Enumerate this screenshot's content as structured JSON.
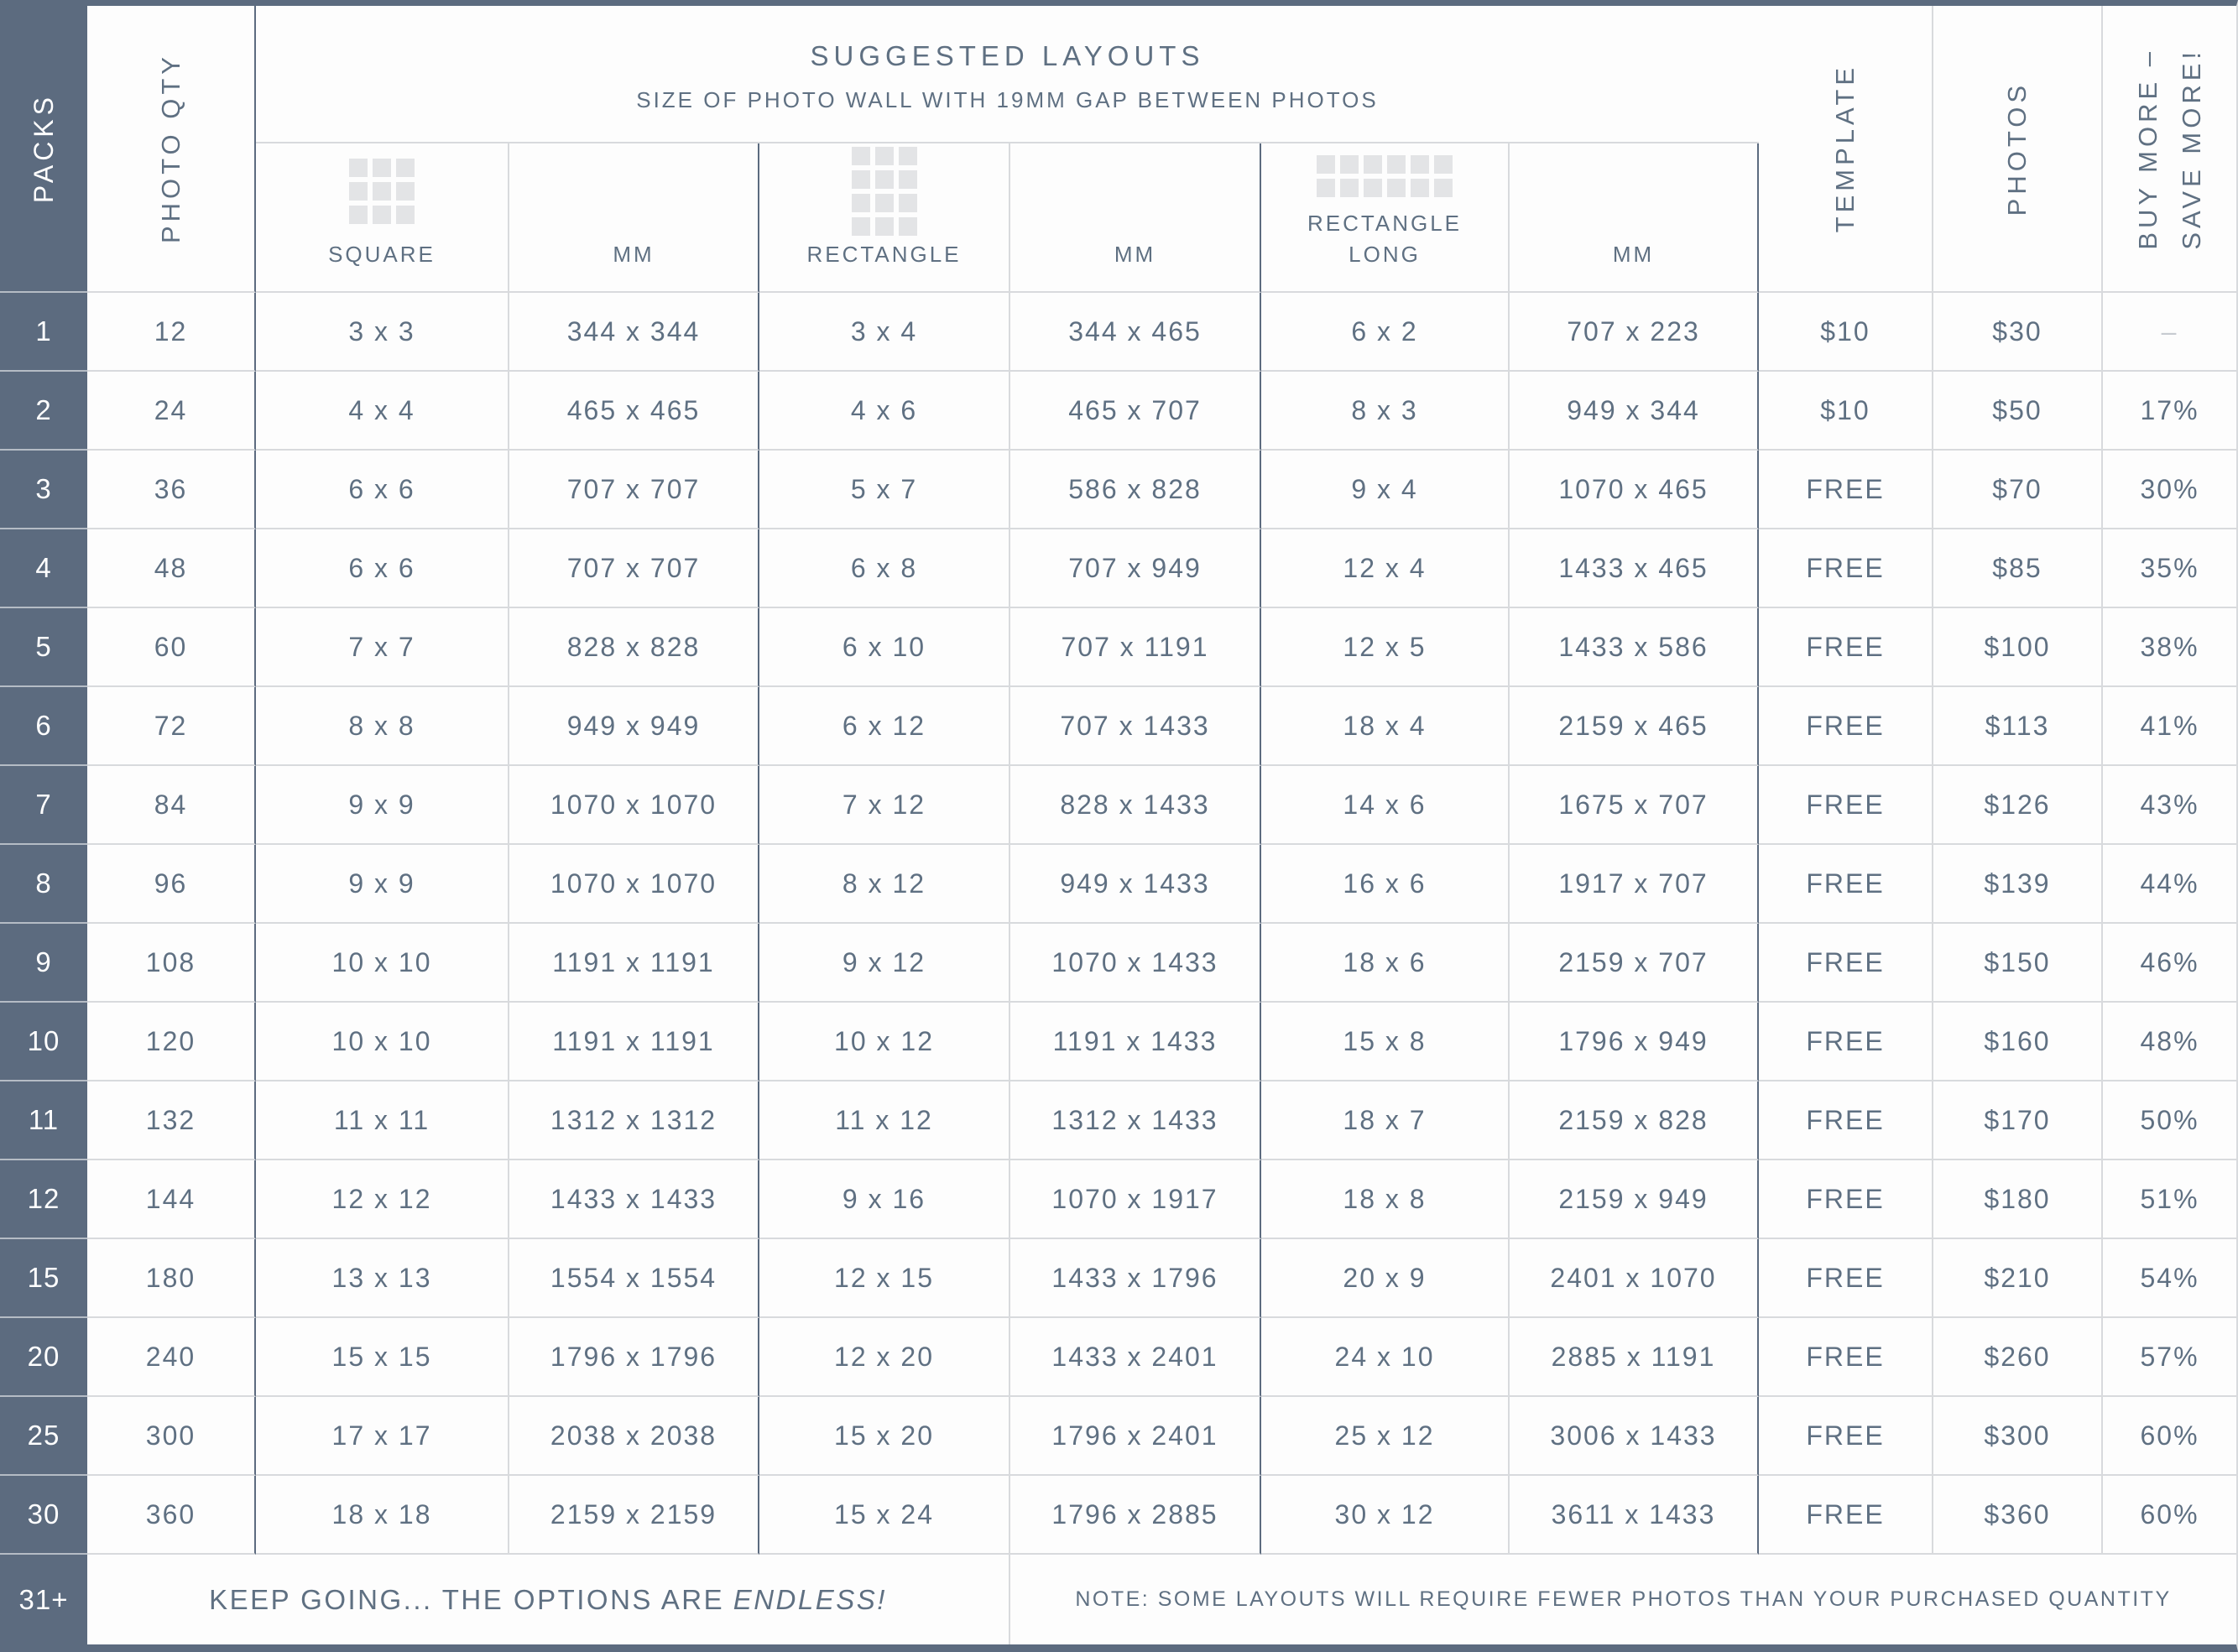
{
  "colors": {
    "slate": "#5c6b7f",
    "text": "#5f7082",
    "border_light": "#d8dadd",
    "icon_gray": "#e3e4e6"
  },
  "packs_header": "PACKS",
  "photo_qty_header": "PHOTO QTY",
  "suggested": {
    "title": "SUGGESTED LAYOUTS",
    "subtitle": "SIZE OF PHOTO WALL WITH 19MM GAP BETWEEN PHOTOS",
    "col_square": "SQUARE",
    "col_mm1": "MM",
    "col_rectangle": "RECTANGLE",
    "col_mm2": "MM",
    "col_rect_long": "RECTANGLE LONG",
    "col_mm3": "MM"
  },
  "template_header": "TEMPLATE",
  "photos_header": "PHOTOS",
  "buy_more_header": {
    "line1": "BUY MORE –",
    "line2": "SAVE MORE!"
  },
  "rows": [
    {
      "pack": "1",
      "qty": "12",
      "square": "3 x 3",
      "square_mm": "344 x 344",
      "rect": "3 x 4",
      "rect_mm": "344 x 465",
      "long": "6 x 2",
      "long_mm": "707 x 223",
      "template": "$10",
      "photos": "$30",
      "save": "–"
    },
    {
      "pack": "2",
      "qty": "24",
      "square": "4 x 4",
      "square_mm": "465 x 465",
      "rect": "4 x 6",
      "rect_mm": "465 x 707",
      "long": "8 x 3",
      "long_mm": "949 x 344",
      "template": "$10",
      "photos": "$50",
      "save": "17%"
    },
    {
      "pack": "3",
      "qty": "36",
      "square": "6 x 6",
      "square_mm": "707 x 707",
      "rect": "5 x 7",
      "rect_mm": "586 x 828",
      "long": "9 x 4",
      "long_mm": "1070 x 465",
      "template": "FREE",
      "photos": "$70",
      "save": "30%"
    },
    {
      "pack": "4",
      "qty": "48",
      "square": "6 x 6",
      "square_mm": "707 x 707",
      "rect": "6 x 8",
      "rect_mm": "707 x 949",
      "long": "12 x 4",
      "long_mm": "1433 x 465",
      "template": "FREE",
      "photos": "$85",
      "save": "35%"
    },
    {
      "pack": "5",
      "qty": "60",
      "square": "7 x 7",
      "square_mm": "828 x 828",
      "rect": "6 x 10",
      "rect_mm": "707 x 1191",
      "long": "12 x 5",
      "long_mm": "1433 x 586",
      "template": "FREE",
      "photos": "$100",
      "save": "38%"
    },
    {
      "pack": "6",
      "qty": "72",
      "square": "8 x 8",
      "square_mm": "949 x 949",
      "rect": "6 x 12",
      "rect_mm": "707 x 1433",
      "long": "18 x 4",
      "long_mm": "2159 x 465",
      "template": "FREE",
      "photos": "$113",
      "save": "41%"
    },
    {
      "pack": "7",
      "qty": "84",
      "square": "9 x 9",
      "square_mm": "1070 x 1070",
      "rect": "7 x 12",
      "rect_mm": "828 x 1433",
      "long": "14 x 6",
      "long_mm": "1675 x 707",
      "template": "FREE",
      "photos": "$126",
      "save": "43%"
    },
    {
      "pack": "8",
      "qty": "96",
      "square": "9 x 9",
      "square_mm": "1070 x 1070",
      "rect": "8 x 12",
      "rect_mm": "949 x 1433",
      "long": "16 x 6",
      "long_mm": "1917 x 707",
      "template": "FREE",
      "photos": "$139",
      "save": "44%"
    },
    {
      "pack": "9",
      "qty": "108",
      "square": "10 x 10",
      "square_mm": "1191 x 1191",
      "rect": "9 x 12",
      "rect_mm": "1070 x 1433",
      "long": "18 x 6",
      "long_mm": "2159 x 707",
      "template": "FREE",
      "photos": "$150",
      "save": "46%"
    },
    {
      "pack": "10",
      "qty": "120",
      "square": "10 x 10",
      "square_mm": "1191 x 1191",
      "rect": "10 x 12",
      "rect_mm": "1191 x 1433",
      "long": "15 x 8",
      "long_mm": "1796 x 949",
      "template": "FREE",
      "photos": "$160",
      "save": "48%"
    },
    {
      "pack": "11",
      "qty": "132",
      "square": "11 x 11",
      "square_mm": "1312 x 1312",
      "rect": "11 x 12",
      "rect_mm": "1312 x 1433",
      "long": "18 x 7",
      "long_mm": "2159 x 828",
      "template": "FREE",
      "photos": "$170",
      "save": "50%"
    },
    {
      "pack": "12",
      "qty": "144",
      "square": "12 x 12",
      "square_mm": "1433 x 1433",
      "rect": "9 x 16",
      "rect_mm": "1070 x 1917",
      "long": "18 x 8",
      "long_mm": "2159 x 949",
      "template": "FREE",
      "photos": "$180",
      "save": "51%"
    },
    {
      "pack": "15",
      "qty": "180",
      "square": "13 x 13",
      "square_mm": "1554 x 1554",
      "rect": "12 x 15",
      "rect_mm": "1433 x 1796",
      "long": "20 x 9",
      "long_mm": "2401 x 1070",
      "template": "FREE",
      "photos": "$210",
      "save": "54%"
    },
    {
      "pack": "20",
      "qty": "240",
      "square": "15 x 15",
      "square_mm": "1796 x 1796",
      "rect": "12 x 20",
      "rect_mm": "1433 x 2401",
      "long": "24 x 10",
      "long_mm": "2885 x 1191",
      "template": "FREE",
      "photos": "$260",
      "save": "57%"
    },
    {
      "pack": "25",
      "qty": "300",
      "square": "17 x 17",
      "square_mm": "2038 x 2038",
      "rect": "15 x 20",
      "rect_mm": "1796 x 2401",
      "long": "25 x 12",
      "long_mm": "3006 x 1433",
      "template": "FREE",
      "photos": "$300",
      "save": "60%"
    },
    {
      "pack": "30",
      "qty": "360",
      "square": "18 x 18",
      "square_mm": "2159 x 2159",
      "rect": "15 x 24",
      "rect_mm": "1796 x 2885",
      "long": "30 x 12",
      "long_mm": "3611 x 1433",
      "template": "FREE",
      "photos": "$360",
      "save": "60%"
    }
  ],
  "footer": {
    "pack": "31+",
    "keep_going": "KEEP GOING... THE OPTIONS ARE",
    "keep_going_em": "ENDLESS!",
    "note": "NOTE: SOME LAYOUTS WILL REQUIRE FEWER PHOTOS THAN YOUR PURCHASED QUANTITY"
  }
}
